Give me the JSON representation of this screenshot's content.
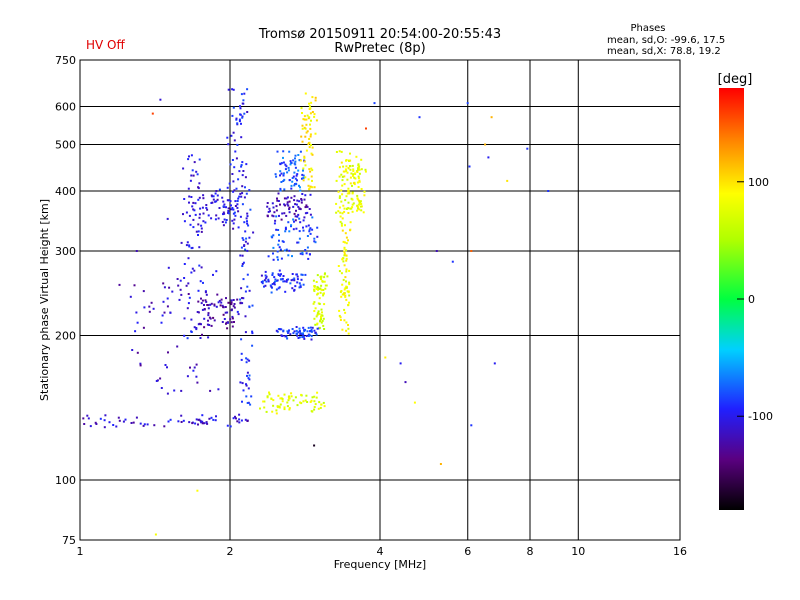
{
  "header": {
    "title_line1": "Tromsø 20150911 20:54:00-20:55:43",
    "title_line2": "RwPretec (8p)",
    "hv_status": "HV Off",
    "hv_color": "#e00000"
  },
  "phase_stats": {
    "heading": "Phases",
    "o_line": "mean, sd,O: -99.6, 17.5",
    "x_line": "mean, sd,X:  78.8, 19.2"
  },
  "colorbar": {
    "unit_label": "[deg]",
    "ticks": [
      "100",
      "0",
      "-100"
    ],
    "tick_values": [
      100,
      0,
      -100
    ],
    "range": [
      -180,
      180
    ]
  },
  "chart_data": {
    "type": "scatter",
    "x_scale": "log",
    "y_scale": "log",
    "xlabel": "Frequency [MHz]",
    "ylabel": "Stationary phase Virtual Height [km]",
    "xlim": [
      1,
      16
    ],
    "ylim": [
      75,
      750
    ],
    "x_ticks": [
      1,
      2,
      4,
      6,
      8,
      10,
      16
    ],
    "x_tick_labels": [
      "1",
      "2",
      "4",
      "6",
      "8",
      "10",
      "16"
    ],
    "y_ticks": [
      75,
      100,
      200,
      300,
      400,
      500,
      600,
      750
    ],
    "y_tick_labels": [
      "75",
      "100",
      "200",
      "300",
      "400",
      "500",
      "600",
      "750"
    ],
    "grid": true,
    "color_quantity": "phase [deg]",
    "traces": [
      {
        "f1": 1.0,
        "f2": 2.2,
        "h1": 130,
        "h2": 135,
        "phase": -110
      },
      {
        "f1": 1.25,
        "f2": 1.9,
        "h1": 150,
        "h2": 280,
        "phase": -115
      },
      {
        "f1": 1.6,
        "f2": 1.75,
        "h1": 200,
        "h2": 480,
        "phase": -105
      },
      {
        "f1": 1.75,
        "f2": 2.1,
        "h1": 210,
        "h2": 240,
        "phase": -125
      },
      {
        "f1": 1.7,
        "f2": 2.1,
        "h1": 340,
        "h2": 400,
        "phase": -105
      },
      {
        "f1": 2.0,
        "f2": 2.15,
        "h1": 320,
        "h2": 650,
        "phase": -100
      },
      {
        "f1": 2.1,
        "f2": 2.2,
        "h1": 140,
        "h2": 420,
        "phase": -95
      },
      {
        "f1": 2.3,
        "f2": 2.8,
        "h1": 250,
        "h2": 270,
        "phase": -95
      },
      {
        "f1": 2.4,
        "f2": 3.0,
        "h1": 290,
        "h2": 350,
        "phase": -85
      },
      {
        "f1": 2.5,
        "f2": 3.0,
        "h1": 200,
        "h2": 205,
        "phase": -90
      },
      {
        "f1": 2.4,
        "f2": 2.9,
        "h1": 350,
        "h2": 390,
        "phase": -120
      },
      {
        "f1": 2.5,
        "f2": 2.8,
        "h1": 400,
        "h2": 480,
        "phase": -80
      },
      {
        "f1": 2.8,
        "f2": 2.95,
        "h1": 400,
        "h2": 640,
        "phase": 95
      },
      {
        "f1": 2.3,
        "f2": 3.1,
        "h1": 140,
        "h2": 150,
        "phase": 75
      },
      {
        "f1": 2.95,
        "f2": 3.1,
        "h1": 210,
        "h2": 270,
        "phase": 70
      },
      {
        "f1": 3.35,
        "f2": 3.45,
        "h1": 200,
        "h2": 330,
        "phase": 85
      },
      {
        "f1": 3.3,
        "f2": 3.5,
        "h1": 330,
        "h2": 480,
        "phase": 80
      },
      {
        "f1": 3.5,
        "f2": 3.7,
        "h1": 360,
        "h2": 470,
        "phase": 80
      }
    ],
    "scattered_points": [
      {
        "f": 1.45,
        "h": 620,
        "phase": -110
      },
      {
        "f": 1.4,
        "h": 580,
        "phase": 160
      },
      {
        "f": 1.5,
        "h": 350,
        "phase": -110
      },
      {
        "f": 1.3,
        "h": 300,
        "phase": -120
      },
      {
        "f": 1.2,
        "h": 255,
        "phase": -130
      },
      {
        "f": 1.72,
        "h": 95,
        "phase": 90
      },
      {
        "f": 1.42,
        "h": 77,
        "phase": 85
      },
      {
        "f": 3.9,
        "h": 610,
        "phase": -85
      },
      {
        "f": 3.75,
        "h": 540,
        "phase": 160
      },
      {
        "f": 4.8,
        "h": 570,
        "phase": -90
      },
      {
        "f": 6.0,
        "h": 610,
        "phase": -85
      },
      {
        "f": 6.05,
        "h": 450,
        "phase": -90
      },
      {
        "f": 6.1,
        "h": 300,
        "phase": 150
      },
      {
        "f": 6.1,
        "h": 130,
        "phase": -90
      },
      {
        "f": 6.5,
        "h": 500,
        "phase": 120
      },
      {
        "f": 6.6,
        "h": 470,
        "phase": -100
      },
      {
        "f": 6.7,
        "h": 570,
        "phase": 120
      },
      {
        "f": 7.2,
        "h": 420,
        "phase": 100
      },
      {
        "f": 7.9,
        "h": 490,
        "phase": -90
      },
      {
        "f": 8.7,
        "h": 400,
        "phase": -90
      },
      {
        "f": 4.1,
        "h": 180,
        "phase": 95
      },
      {
        "f": 4.4,
        "h": 175,
        "phase": -100
      },
      {
        "f": 4.5,
        "h": 160,
        "phase": -120
      },
      {
        "f": 4.7,
        "h": 145,
        "phase": 90
      },
      {
        "f": 5.3,
        "h": 108,
        "phase": 120
      },
      {
        "f": 5.6,
        "h": 285,
        "phase": -90
      },
      {
        "f": 6.8,
        "h": 175,
        "phase": -100
      },
      {
        "f": 2.95,
        "h": 118,
        "phase": -170
      },
      {
        "f": 5.2,
        "h": 300,
        "phase": -120
      }
    ]
  }
}
